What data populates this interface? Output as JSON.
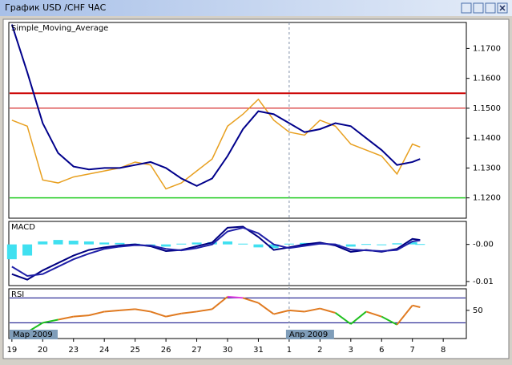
{
  "window": {
    "title": "График USD /CHF  ЧАС"
  },
  "chart_data": [
    {
      "type": "line",
      "title": "Simple_Moving_Average",
      "x": [
        0,
        0.5,
        1,
        1.5,
        2,
        2.5,
        3,
        3.5,
        4,
        4.5,
        5,
        5.5,
        6,
        6.5,
        7,
        7.5,
        8,
        8.5,
        9,
        9.5,
        10,
        10.5,
        11,
        11.5,
        12,
        12.5,
        13,
        13.25
      ],
      "series": [
        {
          "color": "#e8a020",
          "values": [
            1.146,
            1.144,
            1.126,
            1.125,
            1.127,
            1.128,
            1.129,
            1.13,
            1.132,
            1.131,
            1.123,
            1.125,
            1.129,
            1.133,
            1.144,
            1.148,
            1.153,
            1.146,
            1.142,
            1.141,
            1.146,
            1.144,
            1.138,
            1.136,
            1.134,
            1.128,
            1.138,
            1.137
          ]
        },
        {
          "color": "#00008b",
          "values": [
            1.178,
            1.162,
            1.145,
            1.135,
            1.1305,
            1.1295,
            1.13,
            1.13,
            1.131,
            1.132,
            1.13,
            1.1265,
            1.124,
            1.1265,
            1.134,
            1.143,
            1.149,
            1.148,
            1.145,
            1.142,
            1.143,
            1.145,
            1.144,
            1.14,
            1.136,
            1.131,
            1.132,
            1.133
          ]
        }
      ],
      "hlines": [
        {
          "value": 1.155,
          "color": "#cc0000",
          "width": 2
        },
        {
          "value": 1.15,
          "color": "#cc0000",
          "width": 1
        },
        {
          "value": 1.12,
          "color": "#22cc22",
          "width": 1.5
        }
      ],
      "xlim": [
        -0.1,
        14.75
      ],
      "ylim": [
        1.1132,
        1.1787
      ],
      "yticks": [
        {
          "value": 1.17,
          "label": "1.1700"
        },
        {
          "value": 1.16,
          "label": "1.1600"
        },
        {
          "value": 1.15,
          "label": "1.1500"
        },
        {
          "value": 1.14,
          "label": "1.1400"
        },
        {
          "value": 1.13,
          "label": "1.1300"
        },
        {
          "value": 1.12,
          "label": "1.1200"
        }
      ]
    },
    {
      "type": "line",
      "title": "MACD",
      "x": [
        0,
        0.5,
        1,
        1.5,
        2,
        2.5,
        3,
        3.5,
        4,
        4.5,
        5,
        5.5,
        6,
        6.5,
        7,
        7.5,
        8,
        8.5,
        9,
        9.5,
        10,
        10.5,
        11,
        11.5,
        12,
        12.5,
        13,
        13.25
      ],
      "series": [
        {
          "color": "#40e0f0",
          "style": "histogram",
          "values": [
            -0.004,
            -0.003,
            0.0008,
            0.0012,
            0.001,
            0.0008,
            0.0005,
            0.0004,
            0.0002,
            -0.0003,
            -0.0006,
            0.0002,
            0.0005,
            0.0006,
            0.0008,
            0.0002,
            -0.0008,
            -0.001,
            0.0002,
            0.0004,
            0.0002,
            -0.0002,
            -0.0006,
            0.0001,
            -0.0002,
            0.0003,
            0.0006,
            0.0001
          ]
        },
        {
          "color": "#000080",
          "values": [
            -0.008,
            -0.0095,
            -0.007,
            -0.005,
            -0.003,
            -0.0015,
            -0.0008,
            -0.0003,
            0.0,
            -0.0005,
            -0.0018,
            -0.0015,
            -0.0005,
            0.0005,
            0.0045,
            0.0048,
            0.002,
            -0.0015,
            -0.0008,
            0.0,
            0.0005,
            -0.0003,
            -0.002,
            -0.0015,
            -0.002,
            -0.0012,
            0.0015,
            0.0012
          ]
        },
        {
          "color": "#2020a8",
          "values": [
            -0.006,
            -0.0085,
            -0.008,
            -0.006,
            -0.004,
            -0.0025,
            -0.0012,
            -0.0006,
            -0.0002,
            -0.0003,
            -0.0012,
            -0.0016,
            -0.001,
            0.0,
            0.0035,
            0.0045,
            0.003,
            0.0,
            -0.001,
            -0.0004,
            0.0002,
            0.0,
            -0.0014,
            -0.0016,
            -0.0018,
            -0.0015,
            0.0008,
            0.0011
          ]
        }
      ],
      "xlim": [
        -0.1,
        14.75
      ],
      "ylim": [
        -0.0111,
        0.0062
      ],
      "yticks": [
        {
          "value": 0,
          "label": "-0.00"
        },
        {
          "value": -0.01,
          "label": "-0.01"
        }
      ]
    },
    {
      "type": "line",
      "title": "RSI",
      "x": [
        0,
        0.5,
        1,
        1.5,
        2,
        2.5,
        3,
        3.5,
        4,
        4.5,
        5,
        5.5,
        6,
        6.5,
        7,
        7.5,
        8,
        8.5,
        9,
        9.5,
        10,
        10.5,
        11,
        11.5,
        12,
        12.5,
        13,
        13.25
      ],
      "series": [
        {
          "color": "#e07a20",
          "over_color": "#e040e0",
          "under_color": "#20c020",
          "values": [
            10,
            15,
            30,
            35,
            40,
            42,
            48,
            50,
            52,
            48,
            40,
            45,
            48,
            52,
            72,
            70,
            62,
            44,
            50,
            48,
            53,
            46,
            28,
            48,
            40,
            27,
            58,
            55
          ]
        }
      ],
      "levels": [
        70,
        30
      ],
      "xlim": [
        -0.1,
        14.75
      ],
      "ylim": [
        4.7,
        84.7
      ],
      "yticks": [
        50
      ],
      "xticks": [
        {
          "value": 0,
          "label": "19"
        },
        {
          "value": 1,
          "label": "20"
        },
        {
          "value": 2,
          "label": "23"
        },
        {
          "value": 3,
          "label": "24"
        },
        {
          "value": 4,
          "label": "25"
        },
        {
          "value": 5,
          "label": "26"
        },
        {
          "value": 6,
          "label": "27"
        },
        {
          "value": 7,
          "label": "30"
        },
        {
          "value": 8,
          "label": "31"
        },
        {
          "value": 9,
          "label": "1"
        },
        {
          "value": 10,
          "label": "2"
        },
        {
          "value": 11,
          "label": "3"
        },
        {
          "value": 12,
          "label": "6"
        },
        {
          "value": 13,
          "label": "7"
        },
        {
          "value": 14,
          "label": "8"
        }
      ],
      "period_ticks": [
        {
          "value": 0,
          "label": "Мар 2009"
        },
        {
          "value": 9,
          "label": "Апр 2009"
        }
      ]
    }
  ]
}
